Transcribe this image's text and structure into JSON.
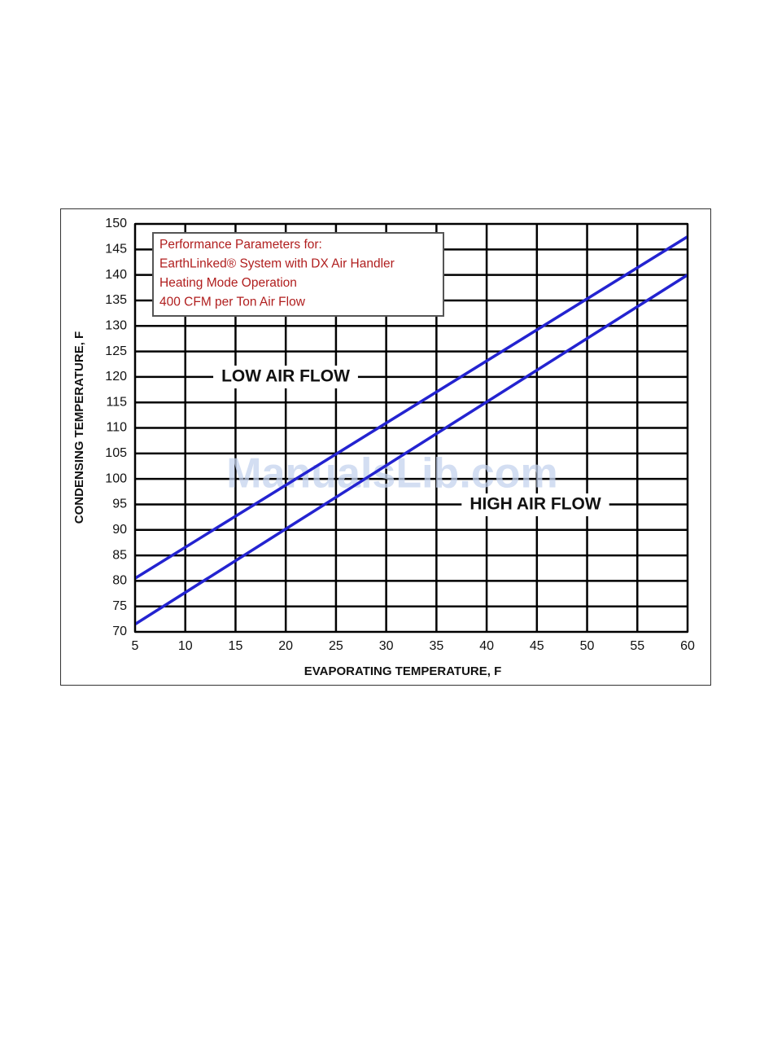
{
  "chart_data": {
    "type": "line",
    "xlabel": "EVAPORATING TEMPERATURE, F",
    "ylabel": "CONDENSING TEMPERATURE, F",
    "annotation": [
      "Performance Parameters for:",
      "EarthLinked® System with DX Air Handler",
      "Heating Mode Operation",
      "400 CFM per Ton Air Flow"
    ],
    "watermark": "ManualsLib.com",
    "x": [
      5,
      60
    ],
    "series": [
      {
        "name": "LOW AIR FLOW",
        "color": "#2323d0",
        "values": [
          80.5,
          147.5
        ]
      },
      {
        "name": "HIGH AIR FLOW",
        "color": "#2323d0",
        "values": [
          71.5,
          140
        ]
      }
    ],
    "xlim": [
      5,
      60
    ],
    "xticks": [
      5,
      10,
      15,
      20,
      25,
      30,
      35,
      40,
      45,
      50,
      55,
      60
    ],
    "ylim": [
      70,
      150
    ],
    "yticks": [
      70,
      75,
      80,
      85,
      90,
      95,
      100,
      105,
      110,
      115,
      120,
      125,
      130,
      135,
      140,
      145,
      150
    ],
    "grid": true
  }
}
